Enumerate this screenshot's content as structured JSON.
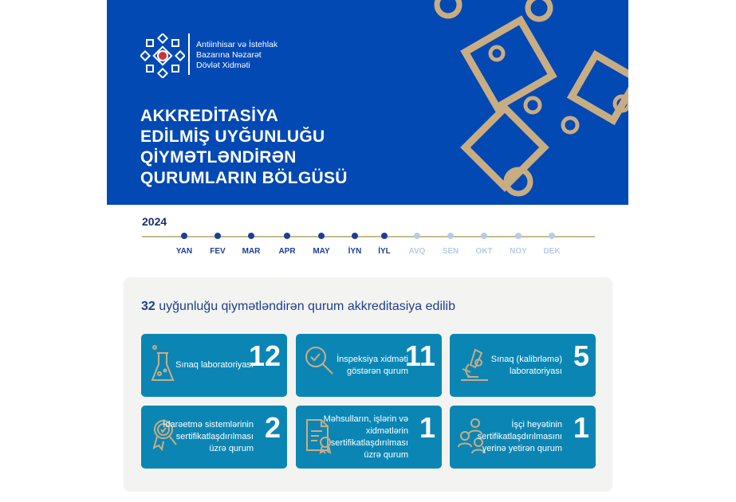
{
  "header": {
    "org_name": [
      "Antiinhisar və İstehlak",
      "Bazarına Nəzarət",
      "Dövlət Xidməti"
    ],
    "title": [
      "AKKREDİTASİYA",
      "EDİLMİŞ UYĞUNLUĞU",
      "QİYMƏTLƏNDİRƏN",
      "QURUMLARIN BÖLGÜSÜ"
    ]
  },
  "timeline": {
    "year": "2024",
    "months": [
      {
        "label": "YAN",
        "active": true
      },
      {
        "label": "FEV",
        "active": true
      },
      {
        "label": "MAR",
        "active": true
      },
      {
        "label": "APR",
        "active": true
      },
      {
        "label": "MAY",
        "active": true
      },
      {
        "label": "İYN",
        "active": true
      },
      {
        "label": "İYL",
        "active": true
      },
      {
        "label": "AVQ",
        "active": false
      },
      {
        "label": "SEN",
        "active": false
      },
      {
        "label": "OKT",
        "active": false
      },
      {
        "label": "NOY",
        "active": false
      },
      {
        "label": "DEK",
        "active": false
      }
    ]
  },
  "summary": {
    "count": "32",
    "text": " uyğunluğu qiymətləndirən qurum akkreditasiya edilib"
  },
  "cards": [
    {
      "label": "Sınaq laboratoriyası",
      "value": "12",
      "icon": "flask-icon"
    },
    {
      "label": "İnspeksiya xidməti göstərən qurum",
      "value": "11",
      "icon": "magnifier-check-icon"
    },
    {
      "label": "Sınaq (kalibrləmə) laboratoriyası",
      "value": "5",
      "icon": "microscope-icon"
    },
    {
      "label": "İdarəetmə sistemlərinin sertifikatlaşdırılması üzrə qurum",
      "value": "2",
      "icon": "award-badge-icon"
    },
    {
      "label": "Məhsulların, işlərin və xidmətlərin sertifikatlaşdırılması üzrə qurum",
      "value": "1",
      "icon": "certificate-icon"
    },
    {
      "label": "İşçi heyətinin sertifikatlaşdırılmasını yerinə yetirən qurum",
      "value": "1",
      "icon": "people-icon"
    }
  ],
  "colors": {
    "banner": "#0349b4",
    "card": "#0b86b4",
    "accent": "#c9ad82",
    "active": "#1c3f94",
    "inactive": "#b8cbe8"
  }
}
